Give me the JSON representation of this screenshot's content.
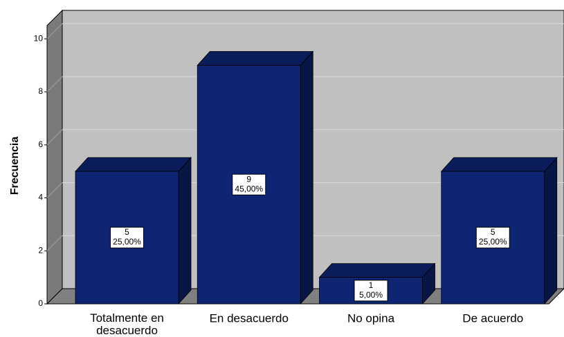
{
  "chart_data": {
    "type": "bar3d",
    "y_label": "Frecuencia",
    "categories": [
      "Totalmente en desacuerdo",
      "En desacuerdo",
      "No opina",
      "De acuerdo"
    ],
    "values": [
      5,
      9,
      1,
      5
    ],
    "percent_labels": [
      "25,00%",
      "45,00%",
      "5,00%",
      "25,00%"
    ],
    "color": "#0d2573",
    "ylim": [
      0,
      10.5
    ],
    "yticks": [
      0,
      2,
      4,
      6,
      8,
      10
    ],
    "grid": true
  }
}
